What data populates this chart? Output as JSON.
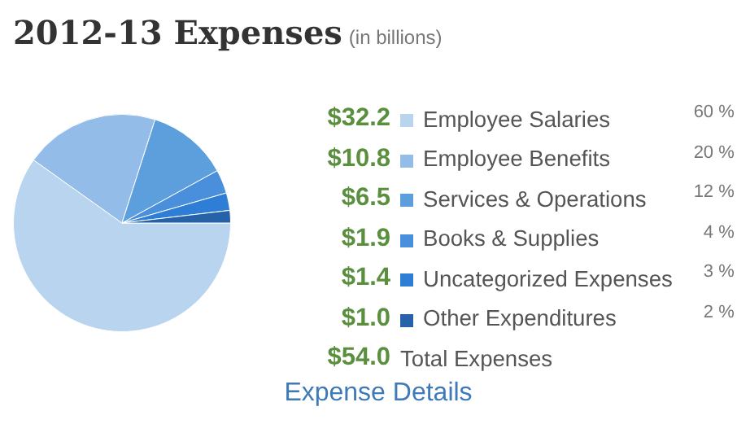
{
  "chart_data": {
    "type": "pie",
    "title": "2012-13 Expenses",
    "subtitle": "(in billions)",
    "categories": [
      "Employee Salaries",
      "Employee Benefits",
      "Services & Operations",
      "Books & Supplies",
      "Uncategorized Expenses",
      "Other Expenditures"
    ],
    "values": [
      32.2,
      10.8,
      6.5,
      1.9,
      1.4,
      1.0
    ],
    "value_labels": [
      "$32.2",
      "$10.8",
      "$6.5",
      "$1.9",
      "$1.4",
      "$1.0"
    ],
    "colors": [
      "#b8d4ee",
      "#93bde8",
      "#5d9edc",
      "#4a8fdb",
      "#2e7ed6",
      "#2562a8"
    ],
    "annotations": [
      "60 %",
      "20 %",
      "12 %",
      "4 %",
      "3 %",
      "2 %",
      "$54.0 Total Expenses",
      "Expense Details"
    ],
    "legend": "right"
  }
}
